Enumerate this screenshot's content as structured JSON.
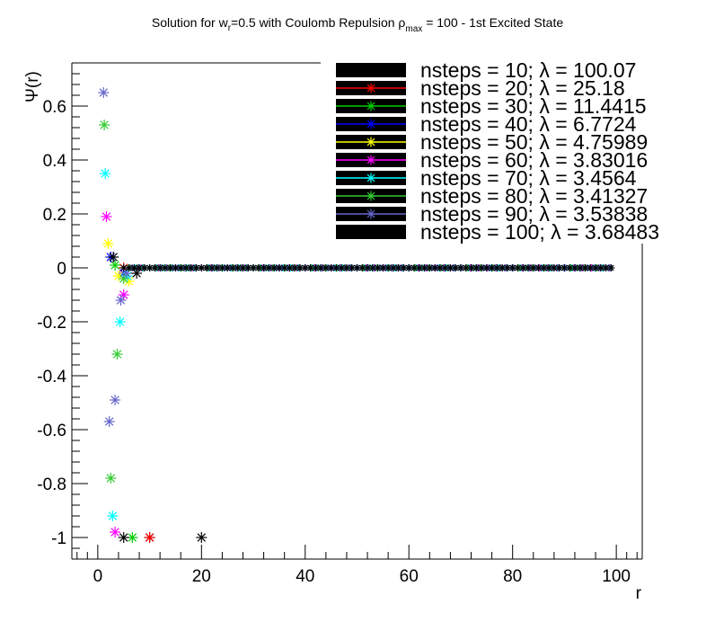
{
  "chart_data": {
    "type": "scatter",
    "title": {
      "prefix": "Solution for w",
      "sub1": "r",
      "middle": "=0.5 with Coulomb Repulsion ρ",
      "sub2": "max",
      "suffix": " = 100 - 1st Excited State"
    },
    "xlabel": "r",
    "ylabel": "Ψ(r)",
    "xlim": [
      -5,
      105
    ],
    "ylim": [
      -1.08,
      0.76
    ],
    "x_ticks": [
      0,
      20,
      40,
      60,
      80,
      100
    ],
    "y_ticks": [
      -1,
      -0.8,
      -0.6,
      -0.4,
      -0.2,
      0,
      0.2,
      0.4,
      0.6
    ],
    "legend_position": "top-right",
    "grid": false,
    "series": [
      {
        "name": "nsteps = 10; λ = 100.07",
        "color": "#000000",
        "step": 10,
        "n": 10,
        "points": [
          [
            10,
            -1.0
          ]
        ]
      },
      {
        "name": "nsteps = 20; λ = 25.18",
        "color": "#ff0000",
        "step": 5,
        "n": 20,
        "points": [
          [
            5,
            0.0
          ],
          [
            10,
            -1.0
          ]
        ]
      },
      {
        "name": "nsteps = 30; λ = 11.4415",
        "color": "#00cc00",
        "step": 3.33,
        "n": 30,
        "points": [
          [
            3.33,
            0.01
          ],
          [
            6.67,
            -1.0
          ]
        ]
      },
      {
        "name": "nsteps = 40; λ = 6.7724",
        "color": "#0000ff",
        "step": 2.5,
        "n": 40,
        "points": [
          [
            2.5,
            0.04
          ],
          [
            5.0,
            -0.02
          ]
        ]
      },
      {
        "name": "nsteps = 50; λ = 4.75989",
        "color": "#ffff00",
        "step": 2,
        "n": 50,
        "points": [
          [
            2,
            0.09
          ],
          [
            4,
            -0.03
          ],
          [
            6,
            -0.05
          ]
        ]
      },
      {
        "name": "nsteps = 60; λ = 3.83016",
        "color": "#ff00ff",
        "step": 1.67,
        "n": 60,
        "points": [
          [
            1.67,
            0.19
          ],
          [
            3.33,
            -0.98
          ],
          [
            5.0,
            -0.1
          ]
        ]
      },
      {
        "name": "nsteps = 70; λ = 3.4564",
        "color": "#00ffff",
        "step": 1.43,
        "n": 70,
        "points": [
          [
            1.43,
            0.35
          ],
          [
            2.86,
            -0.92
          ],
          [
            4.29,
            -0.2
          ],
          [
            5.71,
            -0.03
          ]
        ]
      },
      {
        "name": "nsteps = 80; λ = 3.41327",
        "color": "#33cc33",
        "step": 1.25,
        "n": 80,
        "points": [
          [
            1.25,
            0.53
          ],
          [
            2.5,
            -0.78
          ],
          [
            3.75,
            -0.32
          ],
          [
            5.0,
            -0.04
          ]
        ]
      },
      {
        "name": "nsteps = 90; λ = 3.53838",
        "color": "#6666cc",
        "step": 1.11,
        "n": 90,
        "points": [
          [
            1.11,
            0.65
          ],
          [
            2.22,
            -0.57
          ],
          [
            3.33,
            -0.49
          ],
          [
            4.44,
            -0.12
          ],
          [
            5.56,
            -0.02
          ]
        ]
      },
      {
        "name": "nsteps = 100; λ = 3.68483",
        "color": "#000000",
        "step": 1,
        "n": 100,
        "points": [
          [
            5,
            -1.0
          ],
          [
            7.5,
            -0.02
          ],
          [
            20,
            -1.0
          ],
          [
            3,
            0.04
          ]
        ]
      }
    ]
  }
}
